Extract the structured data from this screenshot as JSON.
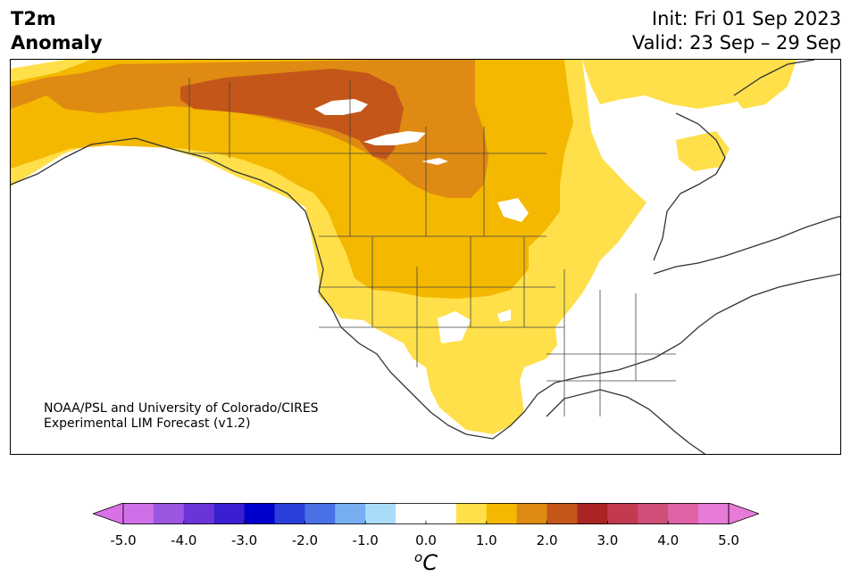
{
  "header": {
    "title_line1": "T2m",
    "title_line2": "Anomaly",
    "init": "Init: Fri 01 Sep 2023",
    "valid": "Valid: 23 Sep – 29 Sep"
  },
  "credit": {
    "line1": "NOAA/PSL and University of Colorado/CIRES",
    "line2": "Experimental LIM Forecast (v1.2)"
  },
  "colorbar": {
    "levels": [
      -5.0,
      -4.5,
      -4.0,
      -3.5,
      -3.0,
      -2.5,
      -2.0,
      -1.5,
      -1.0,
      -0.5,
      0.0,
      0.5,
      1.0,
      1.5,
      2.0,
      2.5,
      3.0,
      3.5,
      4.0,
      4.5,
      5.0
    ],
    "colors": [
      "#d070e8",
      "#9b55e0",
      "#6a35d8",
      "#3a1fd0",
      "#0000cc",
      "#2a3ed8",
      "#4a70e6",
      "#78aff2",
      "#aadcfa",
      "#ffffff",
      "#ffffff",
      "#ffe04a",
      "#f4b800",
      "#df8a12",
      "#c4561a",
      "#aa2424",
      "#c33a50",
      "#cf4f78",
      "#df63a6",
      "#e87ad8"
    ],
    "under_color": "#da70e8",
    "over_color": "#e87ad8",
    "tick_labels": [
      "-5.0",
      "-4.0",
      "-3.0",
      "-2.0",
      "-1.0",
      "0.0",
      "1.0",
      "2.0",
      "3.0",
      "4.0",
      "5.0"
    ],
    "unit_base": "C",
    "unit_sup": "o"
  },
  "map": {
    "region": "North America",
    "anomaly_colors": {
      "0.5-1.0": "#ffe04a",
      "1.0-1.5": "#f4b800",
      "1.5-2.0": "#df8a12",
      "2.0-2.5": "#c4561a"
    },
    "coast_color": "#333333"
  }
}
